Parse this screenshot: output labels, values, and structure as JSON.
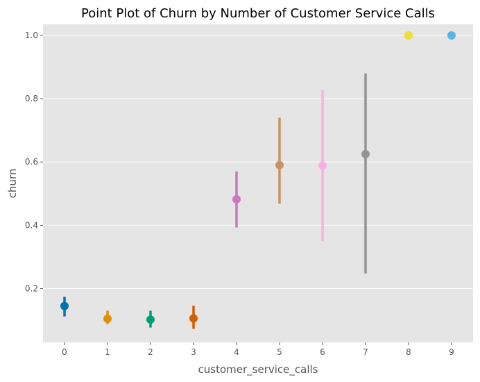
{
  "chart_data": {
    "type": "scatter",
    "title": "Point Plot of Churn by Number of Customer Service Calls",
    "xlabel": "customer_service_calls",
    "ylabel": "churn",
    "categories": [
      "0",
      "1",
      "2",
      "3",
      "4",
      "5",
      "6",
      "7",
      "8",
      "9"
    ],
    "values": [
      0.145,
      0.105,
      0.102,
      0.106,
      0.482,
      0.59,
      0.589,
      0.625,
      1.0,
      1.0
    ],
    "ci_low": [
      0.112,
      0.088,
      0.077,
      0.073,
      0.393,
      0.468,
      0.351,
      0.248,
      1.0,
      1.0
    ],
    "ci_high": [
      0.174,
      0.13,
      0.13,
      0.146,
      0.57,
      0.74,
      0.828,
      0.88,
      1.0,
      1.0
    ],
    "colors": [
      "#0173b2",
      "#de8f05",
      "#029e73",
      "#d55e00",
      "#cc78bc",
      "#ca9161",
      "#fbafe4",
      "#949494",
      "#ece133",
      "#56b4e9"
    ],
    "ylim": [
      0.03,
      1.035
    ],
    "yticks": [
      "0.2",
      "0.4",
      "0.6",
      "0.8",
      "1.0"
    ],
    "grid": true,
    "background": "#e5e5e5"
  }
}
